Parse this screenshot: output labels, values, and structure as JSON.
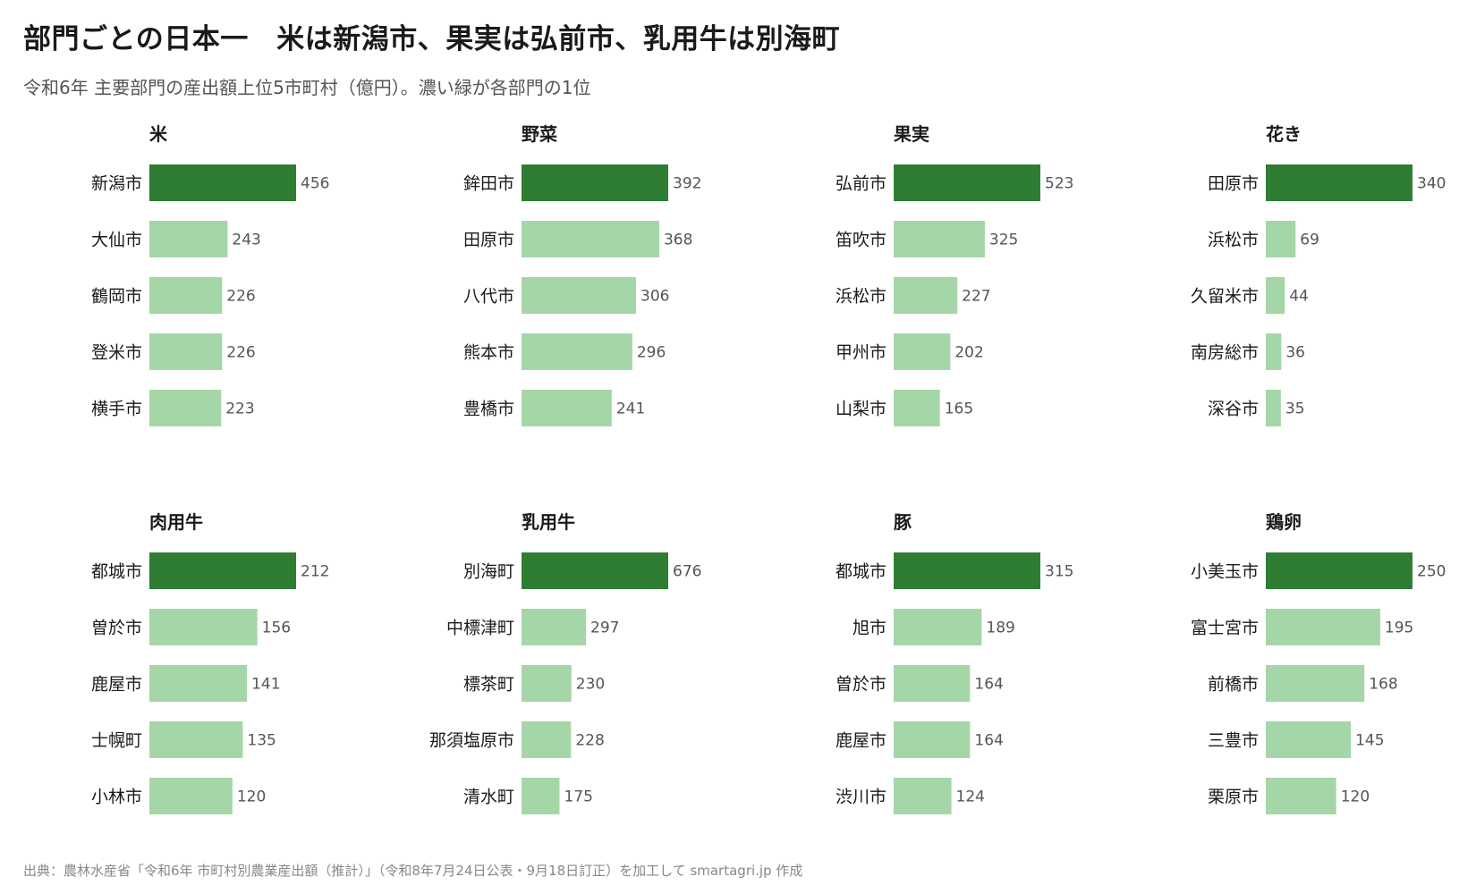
{
  "title": "部門ごとの日本一　米は新潟市、果実は弘前市、乳用牛は別海町",
  "subtitle": "令和6年 主要部門の産出額上位5市町村（億円）。濃い緑が各部門の1位",
  "source": "出典：農林水産省「令和6年 市町村別農業産出額（推計）」（令和8年7月24日公表・9月18日訂正）を加工して smartagri.jp 作成",
  "colors": {
    "top": "#2e7d32",
    "other": "#a5d6a7",
    "label": "#1a1a1a",
    "value": "#555555"
  },
  "chart_data": [
    {
      "type": "bar",
      "title": "米",
      "categories": [
        "新潟市",
        "大仙市",
        "鶴岡市",
        "登米市",
        "横手市"
      ],
      "values": [
        456,
        243,
        226,
        226,
        223
      ]
    },
    {
      "type": "bar",
      "title": "野菜",
      "categories": [
        "鉾田市",
        "田原市",
        "八代市",
        "熊本市",
        "豊橋市"
      ],
      "values": [
        392,
        368,
        306,
        296,
        241
      ]
    },
    {
      "type": "bar",
      "title": "果実",
      "categories": [
        "弘前市",
        "笛吹市",
        "浜松市",
        "甲州市",
        "山梨市"
      ],
      "values": [
        523,
        325,
        227,
        202,
        165
      ]
    },
    {
      "type": "bar",
      "title": "花き",
      "categories": [
        "田原市",
        "浜松市",
        "久留米市",
        "南房総市",
        "深谷市"
      ],
      "values": [
        340,
        69,
        44,
        36,
        35
      ]
    },
    {
      "type": "bar",
      "title": "肉用牛",
      "categories": [
        "都城市",
        "曽於市",
        "鹿屋市",
        "士幌町",
        "小林市"
      ],
      "values": [
        212,
        156,
        141,
        135,
        120
      ]
    },
    {
      "type": "bar",
      "title": "乳用牛",
      "categories": [
        "別海町",
        "中標津町",
        "標茶町",
        "那須塩原市",
        "清水町"
      ],
      "values": [
        676,
        297,
        230,
        228,
        175
      ]
    },
    {
      "type": "bar",
      "title": "豚",
      "categories": [
        "都城市",
        "旭市",
        "曽於市",
        "鹿屋市",
        "渋川市"
      ],
      "values": [
        315,
        189,
        164,
        164,
        124
      ]
    },
    {
      "type": "bar",
      "title": "鶏卵",
      "categories": [
        "小美玉市",
        "富士宮市",
        "前橋市",
        "三豊市",
        "栗原市"
      ],
      "values": [
        250,
        195,
        168,
        145,
        120
      ]
    }
  ]
}
